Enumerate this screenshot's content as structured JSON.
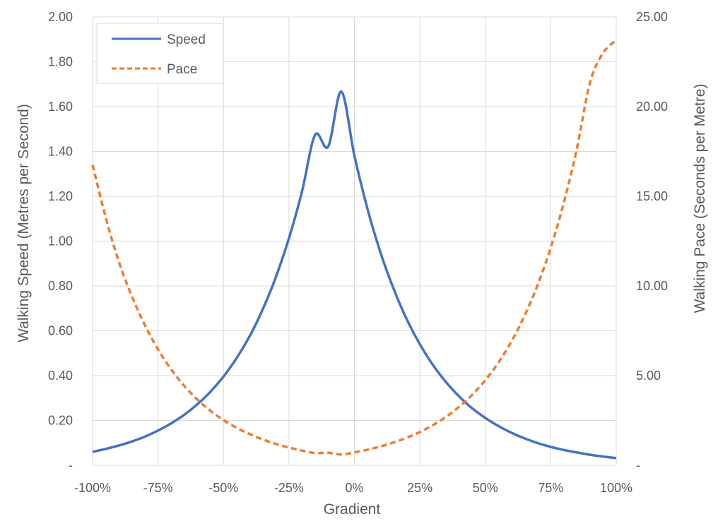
{
  "chart_data": {
    "type": "line",
    "xlabel": "Gradient",
    "ylabel": "Walking Speed (Metres per Second)",
    "y2label": "Walking Pace (Seconds per Metre)",
    "x_tick_labels": [
      "-100%",
      "-75%",
      "-50%",
      "-25%",
      "0%",
      "25%",
      "50%",
      "75%",
      "100%"
    ],
    "y_tick_labels": [
      "-",
      "0.20",
      "0.40",
      "0.60",
      "0.80",
      "1.00",
      "1.20",
      "1.40",
      "1.60",
      "1.80",
      "2.00"
    ],
    "y2_tick_labels": [
      "-",
      "5.00",
      "10.00",
      "15.00",
      "20.00",
      "25.00"
    ],
    "xlim": [
      -1.0,
      1.0
    ],
    "ylim": [
      0,
      2.0
    ],
    "y2lim": [
      0,
      25.0
    ],
    "grid": true,
    "legend_position": "top-left",
    "x": [
      -1.0,
      -0.95,
      -0.9,
      -0.85,
      -0.8,
      -0.75,
      -0.7,
      -0.65,
      -0.6,
      -0.55,
      -0.5,
      -0.45,
      -0.4,
      -0.35,
      -0.3,
      -0.25,
      -0.2,
      -0.15,
      -0.1,
      -0.05,
      0.0,
      0.05,
      0.1,
      0.15,
      0.2,
      0.25,
      0.3,
      0.35,
      0.4,
      0.45,
      0.5,
      0.55,
      0.6,
      0.65,
      0.7,
      0.75,
      0.8,
      0.85,
      0.9,
      0.95,
      1.0
    ],
    "series": [
      {
        "name": "Speed",
        "axis": "left",
        "color": "#4472C4",
        "dash": "solid",
        "values": [
          0.06,
          0.073,
          0.088,
          0.106,
          0.128,
          0.155,
          0.187,
          0.225,
          0.272,
          0.328,
          0.396,
          0.478,
          0.576,
          0.696,
          0.839,
          1.013,
          1.222,
          1.474,
          1.422,
          1.667,
          1.381,
          1.144,
          0.948,
          0.786,
          0.651,
          0.54,
          0.447,
          0.371,
          0.307,
          0.254,
          0.211,
          0.175,
          0.145,
          0.12,
          0.099,
          0.082,
          0.068,
          0.057,
          0.047,
          0.039,
          0.032
        ]
      },
      {
        "name": "Pace",
        "axis": "right",
        "color": "#ED7D31",
        "dash": "dashed",
        "values": [
          16.75,
          13.83,
          11.37,
          9.43,
          7.81,
          6.46,
          5.35,
          4.43,
          3.67,
          3.04,
          2.52,
          2.09,
          1.74,
          1.44,
          1.19,
          0.99,
          0.82,
          0.68,
          0.7,
          0.6,
          0.72,
          0.87,
          1.05,
          1.27,
          1.54,
          1.85,
          2.24,
          2.7,
          3.26,
          3.93,
          4.75,
          5.73,
          6.91,
          8.34,
          10.06,
          12.14,
          14.65,
          17.68,
          21.34,
          23.0,
          23.7
        ]
      }
    ]
  }
}
